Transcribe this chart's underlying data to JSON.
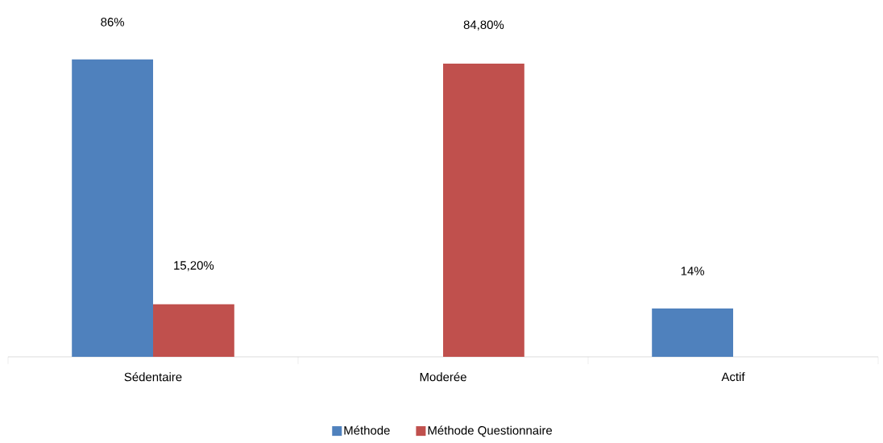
{
  "chart_data": {
    "type": "bar",
    "categories": [
      "Sédentaire",
      "Moderée",
      "Actif"
    ],
    "series": [
      {
        "name": "Méthode",
        "color": "#4f81bd",
        "values": [
          86,
          null,
          14
        ],
        "value_labels": [
          "86%",
          null,
          "14%"
        ]
      },
      {
        "name": "Méthode Questionnaire",
        "color": "#c0504d",
        "values": [
          15.2,
          84.8,
          null
        ],
        "value_labels": [
          "15,20%",
          "84,80%",
          null
        ]
      }
    ],
    "legend": "bottom"
  }
}
